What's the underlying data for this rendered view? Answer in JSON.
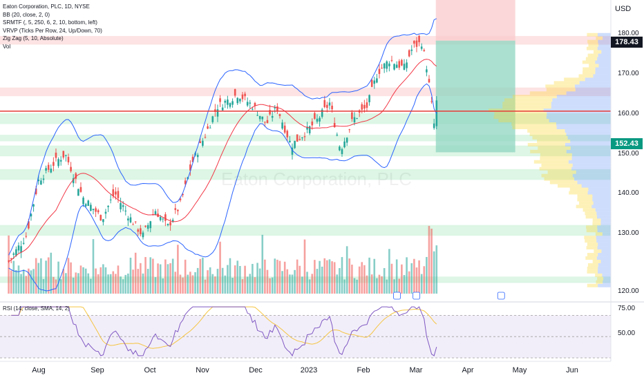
{
  "legend": {
    "lines": [
      "Eaton Corporation, PLC, 1D, NYSE",
      "BB (20, close, 2, 0)",
      "SRMTF (, 5, 250, 6, 2, 10, bottom, left)",
      "VRVP (Ticks Per Row, 24, Up/Down, 70)",
      "Zig Zag (5, 10, Absolute)",
      "Vol"
    ],
    "rsi": "RSI (14, close, SMA, 14, 2)"
  },
  "watermark": "Eaton Corporation, PLC",
  "currency": "USD",
  "price_badges": [
    {
      "value": "178.43",
      "color": "#131722"
    },
    {
      "value": "152.43",
      "color": "#089981"
    }
  ],
  "colors": {
    "up": "#26a69a",
    "down": "#ef5350",
    "bb": "#2962ff",
    "sma": "#f23645",
    "support_zone": "#d7f5e1",
    "resistance_zone": "#fde0e0",
    "stop_zone": "#f9c9cc",
    "target_zone": "#8fd6c0",
    "rsi_line": "#7e57c2",
    "rsi_ma": "#f5c542"
  },
  "chart_data": {
    "type": "candlestick",
    "symbol": "Eaton Corporation, PLC",
    "interval": "1D",
    "exchange": "NYSE",
    "y_ticks": [
      120,
      130,
      140,
      150,
      160,
      170,
      180
    ],
    "y_tick_labels": [
      "120.00",
      "130.00",
      "140.00",
      "150.00",
      "160.00",
      "170.00",
      "180.00"
    ],
    "x_tick_labels": [
      "Aug",
      "Sep",
      "Oct",
      "Nov",
      "Dec",
      "2023",
      "Feb",
      "Mar",
      "Apr",
      "May",
      "Jun"
    ],
    "close_anchors": [
      {
        "date": "Jul 15",
        "price": 127
      },
      {
        "date": "Jul 25",
        "price": 133
      },
      {
        "date": "Aug 01",
        "price": 146
      },
      {
        "date": "Aug 10",
        "price": 150
      },
      {
        "date": "Aug 16",
        "price": 152
      },
      {
        "date": "Aug 26",
        "price": 142
      },
      {
        "date": "Sep 06",
        "price": 137
      },
      {
        "date": "Sep 13",
        "price": 143
      },
      {
        "date": "Sep 22",
        "price": 137
      },
      {
        "date": "Sep 29",
        "price": 133
      },
      {
        "date": "Oct 06",
        "price": 139
      },
      {
        "date": "Oct 13",
        "price": 135
      },
      {
        "date": "Oct 20",
        "price": 140
      },
      {
        "date": "Oct 27",
        "price": 150
      },
      {
        "date": "Nov 04",
        "price": 157
      },
      {
        "date": "Nov 10",
        "price": 163
      },
      {
        "date": "Nov 22",
        "price": 166
      },
      {
        "date": "Dec 01",
        "price": 163
      },
      {
        "date": "Dec 08",
        "price": 159
      },
      {
        "date": "Dec 14",
        "price": 163
      },
      {
        "date": "Dec 22",
        "price": 154
      },
      {
        "date": "Dec 30",
        "price": 157
      },
      {
        "date": "Jan 06",
        "price": 160
      },
      {
        "date": "Jan 13",
        "price": 164
      },
      {
        "date": "Jan 19",
        "price": 153
      },
      {
        "date": "Jan 26",
        "price": 160
      },
      {
        "date": "Feb 03",
        "price": 163
      },
      {
        "date": "Feb 09",
        "price": 171
      },
      {
        "date": "Feb 16",
        "price": 174
      },
      {
        "date": "Feb 24",
        "price": 172
      },
      {
        "date": "Mar 01",
        "price": 177
      },
      {
        "date": "Mar 06",
        "price": 178
      },
      {
        "date": "Mar 09",
        "price": 172
      },
      {
        "date": "Mar 13",
        "price": 159
      },
      {
        "date": "Mar 15",
        "price": 164
      }
    ],
    "horizontal_line": 162,
    "support_zones": [
      [
        159,
        161.5
      ],
      [
        155,
        156.5
      ],
      [
        151.5,
        154
      ],
      [
        146,
        148.5
      ],
      [
        133,
        135.5
      ],
      [
        122,
        123.5
      ]
    ],
    "resistance_zones": [
      [
        177.5,
        179.5
      ],
      [
        165.5,
        167.5
      ]
    ],
    "position": {
      "type": "short",
      "stop_top": 190,
      "entry": 178.43,
      "target": 152.43
    },
    "volume": {
      "ylim": [
        0,
        30
      ]
    },
    "rsi": {
      "ylim": [
        30,
        80
      ],
      "y_ticks": [
        50,
        75
      ],
      "y_tick_labels": [
        "50.00",
        "75.00"
      ],
      "levels": [
        70,
        30
      ]
    }
  }
}
